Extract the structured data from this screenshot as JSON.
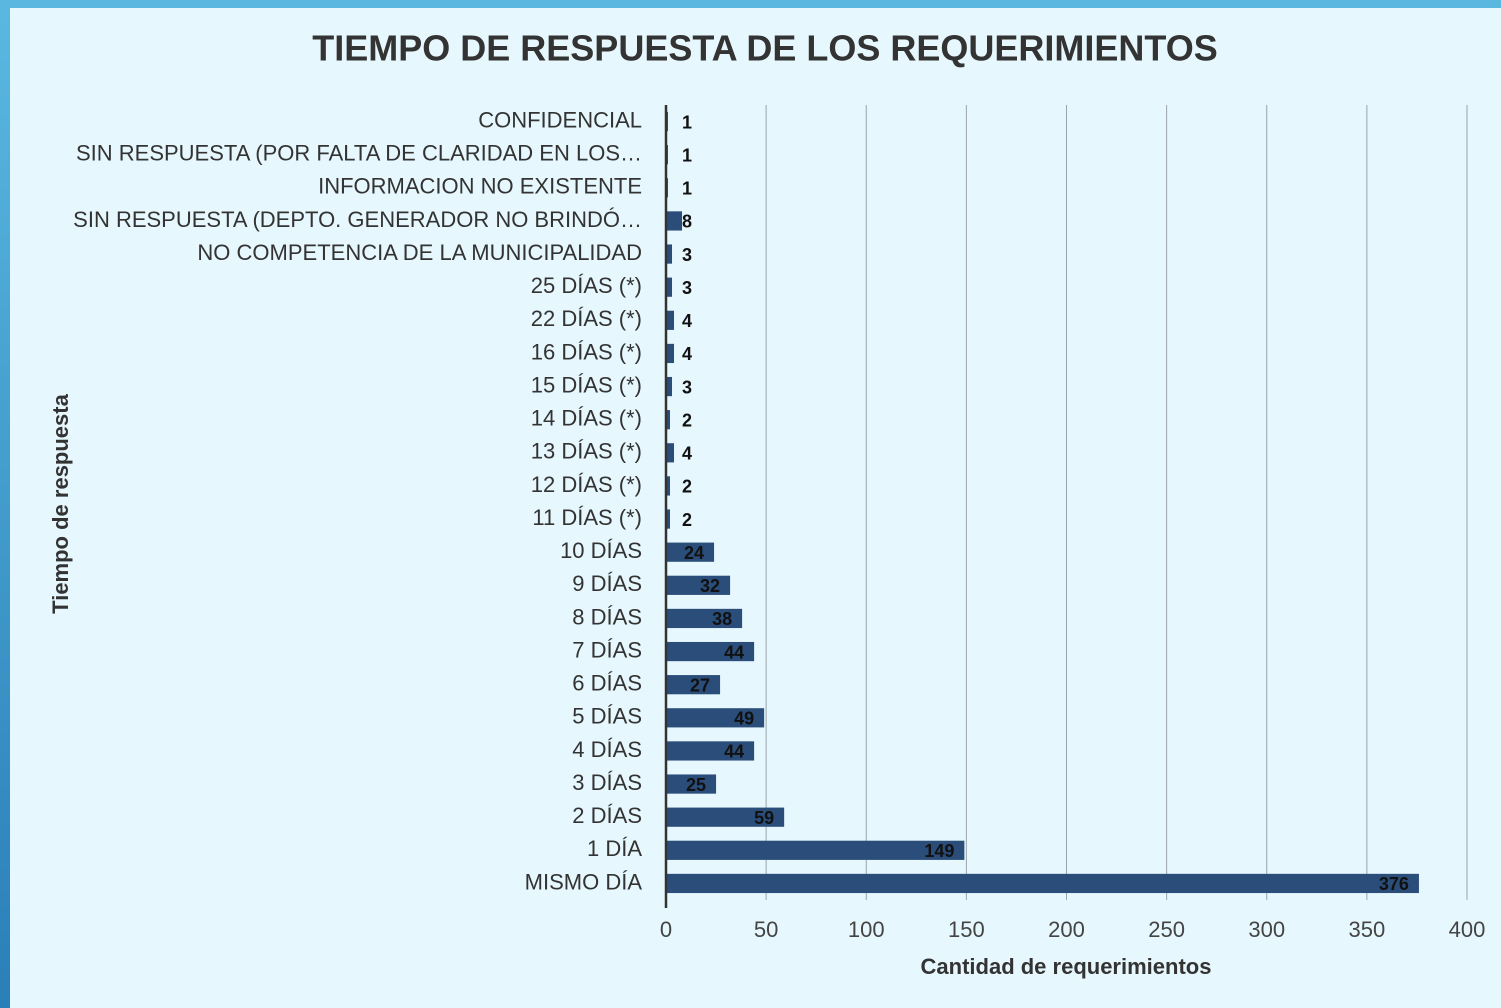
{
  "chart_data": {
    "type": "barh",
    "title": "TIEMPO DE RESPUESTA DE LOS REQUERIMIENTOS",
    "x_label": "Cantidad de requerimientos",
    "y_label": "Tiempo de respuesta",
    "categories": [
      "CONFIDENCIAL",
      "SIN RESPUESTA (POR FALTA DE CLARIDAD EN LOS…",
      "INFORMACION NO EXISTENTE",
      "SIN RESPUESTA (DEPTO. GENERADOR NO BRINDÓ…",
      "NO COMPETENCIA DE LA MUNICIPALIDAD",
      "25 DÍAS (*)",
      "22 DÍAS (*)",
      "16 DÍAS (*)",
      "15 DÍAS (*)",
      "14 DÍAS (*)",
      "13 DÍAS (*)",
      "12 DÍAS (*)",
      "11 DÍAS (*)",
      "10 DÍAS",
      "9 DÍAS",
      "8 DÍAS",
      "7 DÍAS",
      "6 DÍAS",
      "5 DÍAS",
      "4 DÍAS",
      "3 DÍAS",
      "2 DÍAS",
      "1 DÍA",
      "MISMO DÍA"
    ],
    "values": [
      1,
      1,
      1,
      8,
      3,
      3,
      4,
      4,
      3,
      2,
      4,
      2,
      2,
      24,
      32,
      38,
      44,
      27,
      49,
      44,
      25,
      59,
      149,
      376
    ],
    "color": "#2a4d7a",
    "xlim": [
      0,
      400
    ],
    "xticks": [
      0,
      50,
      100,
      150,
      200,
      250,
      300,
      350,
      400
    ],
    "grid": true
  }
}
